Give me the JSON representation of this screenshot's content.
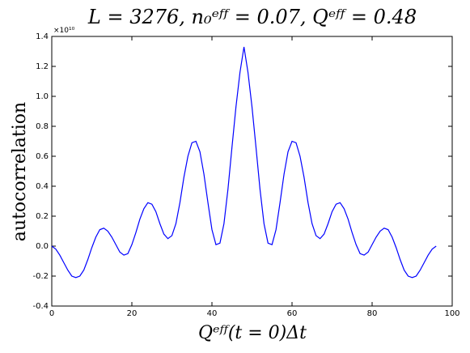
{
  "chart_data": {
    "type": "line",
    "title": "L = 3276, n₀ᵉᶠᶠ = 0.07, Qᵉᶠᶠ = 0.48",
    "x_label": "Qᵉᶠᶠ(t = 0)Δt",
    "y_label": "autocorrelation",
    "y_offset_label": "×10¹⁰",
    "x": [
      0,
      1,
      2,
      3,
      4,
      5,
      6,
      7,
      8,
      9,
      10,
      11,
      12,
      13,
      14,
      15,
      16,
      17,
      18,
      19,
      20,
      21,
      22,
      23,
      24,
      25,
      26,
      27,
      28,
      29,
      30,
      31,
      32,
      33,
      34,
      35,
      36,
      37,
      38,
      39,
      40,
      41,
      42,
      43,
      44,
      45,
      46,
      47,
      48,
      49,
      50,
      51,
      52,
      53,
      54,
      55,
      56,
      57,
      58,
      59,
      60,
      61,
      62,
      63,
      64,
      65,
      66,
      67,
      68,
      69,
      70,
      71,
      72,
      73,
      74,
      75,
      76,
      77,
      78,
      79,
      80,
      81,
      82,
      83,
      84,
      85,
      86,
      87,
      88,
      89,
      90,
      91,
      92,
      93,
      94,
      95,
      96
    ],
    "series": [
      {
        "name": "autocorrelation",
        "color": "#0000ff",
        "values": [
          0.0,
          -0.02,
          -0.06,
          -0.11,
          -0.16,
          -0.2,
          -0.21,
          -0.2,
          -0.16,
          -0.09,
          -0.01,
          0.06,
          0.11,
          0.12,
          0.1,
          0.06,
          0.01,
          -0.04,
          -0.06,
          -0.05,
          0.01,
          0.09,
          0.18,
          0.25,
          0.29,
          0.28,
          0.23,
          0.15,
          0.08,
          0.05,
          0.07,
          0.15,
          0.29,
          0.46,
          0.6,
          0.69,
          0.7,
          0.63,
          0.48,
          0.29,
          0.11,
          0.01,
          0.02,
          0.15,
          0.38,
          0.66,
          0.93,
          1.16,
          1.33,
          1.16,
          0.93,
          0.66,
          0.38,
          0.15,
          0.02,
          0.01,
          0.11,
          0.29,
          0.48,
          0.63,
          0.7,
          0.69,
          0.6,
          0.46,
          0.29,
          0.15,
          0.07,
          0.05,
          0.08,
          0.15,
          0.23,
          0.28,
          0.29,
          0.25,
          0.18,
          0.09,
          0.01,
          -0.05,
          -0.06,
          -0.04,
          0.01,
          0.06,
          0.1,
          0.12,
          0.11,
          0.06,
          -0.01,
          -0.09,
          -0.16,
          -0.2,
          -0.21,
          -0.2,
          -0.16,
          -0.11,
          -0.06,
          -0.02,
          0.0
        ]
      }
    ],
    "xlim": [
      0,
      100
    ],
    "xticks": [
      0,
      20,
      40,
      60,
      80,
      100
    ],
    "ylim": [
      -0.4,
      1.4
    ],
    "yticks": [
      -0.4,
      -0.2,
      {
        "value": 0,
        "label": "0.0"
      },
      0.2,
      0.4,
      0.6,
      0.8,
      {
        "value": 1,
        "label": "1.0"
      },
      1.2,
      1.4
    ],
    "grid": false
  }
}
